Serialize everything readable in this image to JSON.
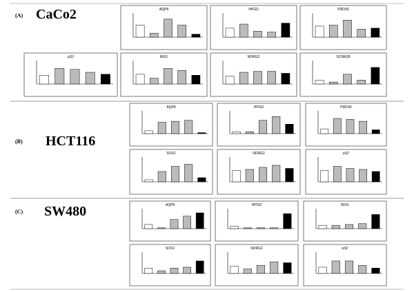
{
  "panels": [
    {
      "letter": "(A)",
      "cell_line": "CaCo2"
    },
    {
      "letter": "(B)",
      "cell_line": "HCT116"
    },
    {
      "letter": "(C)",
      "cell_line": "SW480"
    }
  ],
  "chart_data": [
    {
      "type": "bar",
      "title": "AQP8",
      "values": [
        0.6,
        0.2,
        0.9,
        0.6,
        0.15
      ],
      "colors": [
        "#ffffff",
        "#bbbbbb",
        "#bbbbbb",
        "#bbbbbb",
        "#000000"
      ],
      "ylim": [
        0,
        1.2
      ]
    },
    {
      "type": "bar",
      "title": "HPGD",
      "values": [
        0.45,
        0.65,
        0.3,
        0.25,
        0.7
      ],
      "colors": [
        "#ffffff",
        "#bbbbbb",
        "#bbbbbb",
        "#bbbbbb",
        "#000000"
      ],
      "ylim": [
        0,
        1.2
      ]
    },
    {
      "type": "bar",
      "title": "PRDX6",
      "values": [
        0.55,
        0.6,
        0.85,
        0.4,
        0.45
      ],
      "colors": [
        "#ffffff",
        "#bbbbbb",
        "#bbbbbb",
        "#bbbbbb",
        "#000000"
      ],
      "ylim": [
        0,
        1.2
      ]
    },
    {
      "type": "bar",
      "title": "pS2",
      "values": [
        0.45,
        0.8,
        0.75,
        0.6,
        0.5
      ],
      "colors": [
        "#ffffff",
        "#bbbbbb",
        "#bbbbbb",
        "#bbbbbb",
        "#000000"
      ],
      "ylim": [
        0,
        1.2
      ]
    },
    {
      "type": "bar",
      "title": "MXI1",
      "values": [
        0.5,
        0.3,
        0.8,
        0.7,
        0.45
      ],
      "colors": [
        "#ffffff",
        "#bbbbbb",
        "#bbbbbb",
        "#bbbbbb",
        "#000000"
      ],
      "ylim": [
        0,
        1.2
      ]
    },
    {
      "type": "bar",
      "title": "NDRG2",
      "values": [
        0.4,
        0.6,
        0.65,
        0.65,
        0.55
      ],
      "colors": [
        "#ffffff",
        "#bbbbbb",
        "#bbbbbb",
        "#bbbbbb",
        "#000000"
      ],
      "ylim": [
        0,
        1.2
      ]
    },
    {
      "type": "bar",
      "title": "SCNN1B",
      "values": [
        0.2,
        0.1,
        0.5,
        0.2,
        0.85
      ],
      "colors": [
        "#ffffff",
        "#bbbbbb",
        "#bbbbbb",
        "#bbbbbb",
        "#000000"
      ],
      "ylim": [
        0,
        1.2
      ]
    },
    {
      "type": "bar",
      "title": "AQP8",
      "values": [
        0.15,
        0.6,
        0.65,
        0.7,
        0.05
      ],
      "colors": [
        "#ffffff",
        "#bbbbbb",
        "#bbbbbb",
        "#bbbbbb",
        "#000000"
      ],
      "ylim": [
        0,
        1.2
      ]
    },
    {
      "type": "bar",
      "title": "HPGD",
      "values": [
        0.1,
        0.1,
        0.7,
        0.9,
        0.5
      ],
      "colors": [
        "#ffffff",
        "#bbbbbb",
        "#bbbbbb",
        "#bbbbbb",
        "#000000"
      ],
      "ylim": [
        0,
        1.2
      ]
    },
    {
      "type": "bar",
      "title": "PRDX6",
      "values": [
        0.25,
        0.8,
        0.75,
        0.65,
        0.2
      ],
      "colors": [
        "#ffffff",
        "#bbbbbb",
        "#bbbbbb",
        "#bbbbbb",
        "#000000"
      ],
      "ylim": [
        0,
        1.2
      ]
    },
    {
      "type": "bar",
      "title": "SOX2",
      "values": [
        0.1,
        0.5,
        0.75,
        0.85,
        0.2
      ],
      "colors": [
        "#ffffff",
        "#bbbbbb",
        "#bbbbbb",
        "#bbbbbb",
        "#000000"
      ],
      "ylim": [
        0,
        1.2
      ]
    },
    {
      "type": "bar",
      "title": "NDRG2",
      "values": [
        0.55,
        0.6,
        0.7,
        0.8,
        0.65
      ],
      "colors": [
        "#ffffff",
        "#bbbbbb",
        "#bbbbbb",
        "#bbbbbb",
        "#000000"
      ],
      "ylim": [
        0,
        1.2
      ]
    },
    {
      "type": "bar",
      "title": "pS2",
      "values": [
        0.55,
        0.75,
        0.65,
        0.6,
        0.5
      ],
      "colors": [
        "#ffffff",
        "#bbbbbb",
        "#bbbbbb",
        "#bbbbbb",
        "#000000"
      ],
      "ylim": [
        0,
        1.2
      ]
    },
    {
      "type": "bar",
      "title": "AQP8",
      "values": [
        0.25,
        0.05,
        0.55,
        0.75,
        0.95
      ],
      "colors": [
        "#ffffff",
        "#bbbbbb",
        "#bbbbbb",
        "#bbbbbb",
        "#000000"
      ],
      "ylim": [
        0,
        1.2
      ]
    },
    {
      "type": "bar",
      "title": "HPGD",
      "values": [
        0.15,
        0.05,
        0.05,
        0.05,
        0.9
      ],
      "colors": [
        "#ffffff",
        "#bbbbbb",
        "#bbbbbb",
        "#bbbbbb",
        "#000000"
      ],
      "ylim": [
        0,
        1.2
      ]
    },
    {
      "type": "bar",
      "title": "MXI1",
      "values": [
        0.2,
        0.2,
        0.25,
        0.3,
        0.85
      ],
      "colors": [
        "#ffffff",
        "#bbbbbb",
        "#bbbbbb",
        "#bbbbbb",
        "#000000"
      ],
      "ylim": [
        0,
        1.2
      ]
    },
    {
      "type": "bar",
      "title": "SOX2",
      "values": [
        0.3,
        0.15,
        0.3,
        0.35,
        0.7
      ],
      "colors": [
        "#ffffff",
        "#bbbbbb",
        "#bbbbbb",
        "#bbbbbb",
        "#000000"
      ],
      "ylim": [
        0,
        1.2
      ]
    },
    {
      "type": "bar",
      "title": "NDRG2",
      "values": [
        0.4,
        0.25,
        0.45,
        0.65,
        0.6
      ],
      "colors": [
        "#ffffff",
        "#bbbbbb",
        "#bbbbbb",
        "#bbbbbb",
        "#000000"
      ],
      "ylim": [
        0,
        1.2
      ]
    },
    {
      "type": "bar",
      "title": "pS2",
      "values": [
        0.35,
        0.7,
        0.7,
        0.45,
        0.3
      ],
      "colors": [
        "#ffffff",
        "#bbbbbb",
        "#bbbbbb",
        "#bbbbbb",
        "#000000"
      ],
      "ylim": [
        0,
        1.2
      ]
    }
  ]
}
